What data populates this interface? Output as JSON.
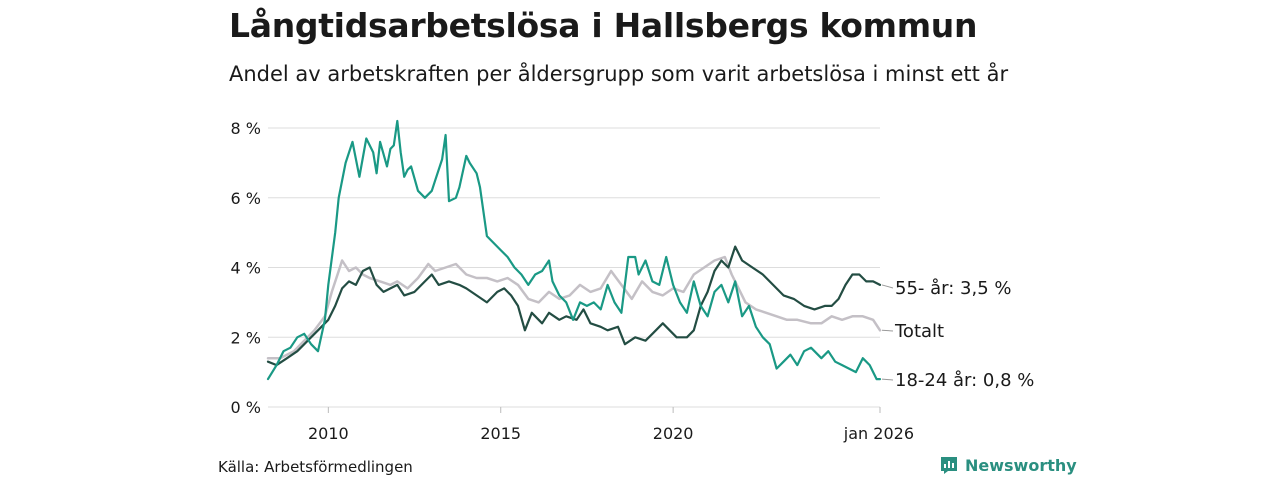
{
  "title": "Långtidsarbetslösa i Hallsbergs kommun",
  "subtitle": "Andel av arbetskraften per åldersgrupp som varit arbetslösa i minst ett år",
  "source": "Källa: Arbetsförmedlingen",
  "brand": {
    "name": "Newsworthy",
    "icon": "newsworthy-logo-icon"
  },
  "colors": {
    "young": "#1a9985",
    "old": "#234d43",
    "total": "#c4c0c6",
    "grid": "#dddddd",
    "text": "#1a1a1a",
    "brand": "#2a8f80"
  },
  "chart_data": {
    "type": "line",
    "title": "Långtidsarbetslösa i Hallsbergs kommun",
    "subtitle": "Andel av arbetskraften per åldersgrupp som varit arbetslösa i minst ett år",
    "xlabel": "",
    "ylabel": "",
    "xlim": [
      2008.25,
      2026.0
    ],
    "ylim": [
      0,
      8.2
    ],
    "grid": true,
    "yticks": [
      {
        "value": 0,
        "label": "0 %"
      },
      {
        "value": 2,
        "label": "2 %"
      },
      {
        "value": 4,
        "label": "4 %"
      },
      {
        "value": 6,
        "label": "6 %"
      },
      {
        "value": 8,
        "label": "8 %"
      }
    ],
    "xticks": [
      {
        "value": 2010,
        "label": "2010"
      },
      {
        "value": 2015,
        "label": "2015"
      },
      {
        "value": 2020,
        "label": "2020"
      },
      {
        "value": 2026,
        "label": "jan 2026"
      }
    ],
    "series": [
      {
        "name": "Totalt",
        "label": "Totalt",
        "color": "#c4c0c6",
        "points": [
          [
            2008.25,
            1.4
          ],
          [
            2008.6,
            1.4
          ],
          [
            2009.0,
            1.6
          ],
          [
            2009.3,
            1.9
          ],
          [
            2009.6,
            2.2
          ],
          [
            2009.9,
            2.6
          ],
          [
            2010.1,
            3.3
          ],
          [
            2010.3,
            3.9
          ],
          [
            2010.4,
            4.2
          ],
          [
            2010.6,
            3.9
          ],
          [
            2010.8,
            4.0
          ],
          [
            2011.0,
            3.8
          ],
          [
            2011.2,
            3.7
          ],
          [
            2011.5,
            3.6
          ],
          [
            2011.8,
            3.5
          ],
          [
            2012.0,
            3.6
          ],
          [
            2012.3,
            3.4
          ],
          [
            2012.6,
            3.7
          ],
          [
            2012.9,
            4.1
          ],
          [
            2013.1,
            3.9
          ],
          [
            2013.4,
            4.0
          ],
          [
            2013.7,
            4.1
          ],
          [
            2014.0,
            3.8
          ],
          [
            2014.3,
            3.7
          ],
          [
            2014.6,
            3.7
          ],
          [
            2014.9,
            3.6
          ],
          [
            2015.2,
            3.7
          ],
          [
            2015.5,
            3.5
          ],
          [
            2015.8,
            3.1
          ],
          [
            2016.1,
            3.0
          ],
          [
            2016.4,
            3.3
          ],
          [
            2016.7,
            3.1
          ],
          [
            2017.0,
            3.2
          ],
          [
            2017.3,
            3.5
          ],
          [
            2017.6,
            3.3
          ],
          [
            2017.9,
            3.4
          ],
          [
            2018.2,
            3.9
          ],
          [
            2018.5,
            3.5
          ],
          [
            2018.8,
            3.1
          ],
          [
            2019.1,
            3.6
          ],
          [
            2019.4,
            3.3
          ],
          [
            2019.7,
            3.2
          ],
          [
            2020.0,
            3.4
          ],
          [
            2020.3,
            3.3
          ],
          [
            2020.6,
            3.8
          ],
          [
            2020.9,
            4.0
          ],
          [
            2021.2,
            4.2
          ],
          [
            2021.5,
            4.3
          ],
          [
            2021.7,
            3.8
          ],
          [
            2021.9,
            3.4
          ],
          [
            2022.1,
            3.0
          ],
          [
            2022.4,
            2.8
          ],
          [
            2022.7,
            2.7
          ],
          [
            2023.0,
            2.6
          ],
          [
            2023.3,
            2.5
          ],
          [
            2023.6,
            2.5
          ],
          [
            2024.0,
            2.4
          ],
          [
            2024.3,
            2.4
          ],
          [
            2024.6,
            2.6
          ],
          [
            2024.9,
            2.5
          ],
          [
            2025.2,
            2.6
          ],
          [
            2025.5,
            2.6
          ],
          [
            2025.8,
            2.5
          ],
          [
            2026.0,
            2.2
          ]
        ]
      },
      {
        "name": "55- år",
        "label": "55- år: 3,5 %",
        "color": "#234d43",
        "points": [
          [
            2008.25,
            1.3
          ],
          [
            2008.5,
            1.2
          ],
          [
            2008.8,
            1.4
          ],
          [
            2009.1,
            1.6
          ],
          [
            2009.4,
            1.9
          ],
          [
            2009.7,
            2.2
          ],
          [
            2010.0,
            2.5
          ],
          [
            2010.2,
            2.9
          ],
          [
            2010.4,
            3.4
          ],
          [
            2010.6,
            3.6
          ],
          [
            2010.8,
            3.5
          ],
          [
            2011.0,
            3.9
          ],
          [
            2011.2,
            4.0
          ],
          [
            2011.4,
            3.5
          ],
          [
            2011.6,
            3.3
          ],
          [
            2011.8,
            3.4
          ],
          [
            2012.0,
            3.5
          ],
          [
            2012.2,
            3.2
          ],
          [
            2012.5,
            3.3
          ],
          [
            2012.8,
            3.6
          ],
          [
            2013.0,
            3.8
          ],
          [
            2013.2,
            3.5
          ],
          [
            2013.5,
            3.6
          ],
          [
            2013.8,
            3.5
          ],
          [
            2014.0,
            3.4
          ],
          [
            2014.3,
            3.2
          ],
          [
            2014.6,
            3.0
          ],
          [
            2014.9,
            3.3
          ],
          [
            2015.1,
            3.4
          ],
          [
            2015.3,
            3.2
          ],
          [
            2015.5,
            2.9
          ],
          [
            2015.7,
            2.2
          ],
          [
            2015.9,
            2.7
          ],
          [
            2016.2,
            2.4
          ],
          [
            2016.4,
            2.7
          ],
          [
            2016.7,
            2.5
          ],
          [
            2016.9,
            2.6
          ],
          [
            2017.2,
            2.5
          ],
          [
            2017.4,
            2.8
          ],
          [
            2017.6,
            2.4
          ],
          [
            2017.9,
            2.3
          ],
          [
            2018.1,
            2.2
          ],
          [
            2018.4,
            2.3
          ],
          [
            2018.6,
            1.8
          ],
          [
            2018.9,
            2.0
          ],
          [
            2019.2,
            1.9
          ],
          [
            2019.4,
            2.1
          ],
          [
            2019.7,
            2.4
          ],
          [
            2019.9,
            2.2
          ],
          [
            2020.1,
            2.0
          ],
          [
            2020.4,
            2.0
          ],
          [
            2020.6,
            2.2
          ],
          [
            2020.8,
            2.9
          ],
          [
            2021.0,
            3.3
          ],
          [
            2021.2,
            3.9
          ],
          [
            2021.4,
            4.2
          ],
          [
            2021.6,
            4.0
          ],
          [
            2021.8,
            4.6
          ],
          [
            2022.0,
            4.2
          ],
          [
            2022.3,
            4.0
          ],
          [
            2022.6,
            3.8
          ],
          [
            2022.9,
            3.5
          ],
          [
            2023.2,
            3.2
          ],
          [
            2023.5,
            3.1
          ],
          [
            2023.8,
            2.9
          ],
          [
            2024.1,
            2.8
          ],
          [
            2024.4,
            2.9
          ],
          [
            2024.6,
            2.9
          ],
          [
            2024.8,
            3.1
          ],
          [
            2025.0,
            3.5
          ],
          [
            2025.2,
            3.8
          ],
          [
            2025.4,
            3.8
          ],
          [
            2025.6,
            3.6
          ],
          [
            2025.8,
            3.6
          ],
          [
            2026.0,
            3.5
          ]
        ]
      },
      {
        "name": "18-24 år",
        "label": "18-24 år: 0,8 %",
        "color": "#1a9985",
        "points": [
          [
            2008.25,
            0.8
          ],
          [
            2008.5,
            1.2
          ],
          [
            2008.7,
            1.6
          ],
          [
            2008.9,
            1.7
          ],
          [
            2009.1,
            2.0
          ],
          [
            2009.3,
            2.1
          ],
          [
            2009.5,
            1.8
          ],
          [
            2009.7,
            1.6
          ],
          [
            2009.9,
            2.5
          ],
          [
            2010.0,
            3.5
          ],
          [
            2010.2,
            5.0
          ],
          [
            2010.3,
            6.0
          ],
          [
            2010.5,
            7.0
          ],
          [
            2010.7,
            7.6
          ],
          [
            2010.9,
            6.6
          ],
          [
            2011.1,
            7.7
          ],
          [
            2011.3,
            7.3
          ],
          [
            2011.4,
            6.7
          ],
          [
            2011.5,
            7.6
          ],
          [
            2011.7,
            6.9
          ],
          [
            2011.8,
            7.4
          ],
          [
            2011.9,
            7.5
          ],
          [
            2012.0,
            8.2
          ],
          [
            2012.1,
            7.3
          ],
          [
            2012.2,
            6.6
          ],
          [
            2012.3,
            6.8
          ],
          [
            2012.4,
            6.9
          ],
          [
            2012.6,
            6.2
          ],
          [
            2012.8,
            6.0
          ],
          [
            2013.0,
            6.2
          ],
          [
            2013.1,
            6.5
          ],
          [
            2013.3,
            7.1
          ],
          [
            2013.4,
            7.8
          ],
          [
            2013.5,
            5.9
          ],
          [
            2013.7,
            6.0
          ],
          [
            2013.8,
            6.3
          ],
          [
            2014.0,
            7.2
          ],
          [
            2014.1,
            7.0
          ],
          [
            2014.3,
            6.7
          ],
          [
            2014.4,
            6.3
          ],
          [
            2014.6,
            4.9
          ],
          [
            2014.8,
            4.7
          ],
          [
            2015.0,
            4.5
          ],
          [
            2015.2,
            4.3
          ],
          [
            2015.4,
            4.0
          ],
          [
            2015.6,
            3.8
          ],
          [
            2015.8,
            3.5
          ],
          [
            2016.0,
            3.8
          ],
          [
            2016.2,
            3.9
          ],
          [
            2016.4,
            4.2
          ],
          [
            2016.5,
            3.6
          ],
          [
            2016.7,
            3.2
          ],
          [
            2016.9,
            3.0
          ],
          [
            2017.1,
            2.5
          ],
          [
            2017.3,
            3.0
          ],
          [
            2017.5,
            2.9
          ],
          [
            2017.7,
            3.0
          ],
          [
            2017.9,
            2.8
          ],
          [
            2018.1,
            3.5
          ],
          [
            2018.3,
            3.0
          ],
          [
            2018.5,
            2.7
          ],
          [
            2018.7,
            4.3
          ],
          [
            2018.9,
            4.3
          ],
          [
            2019.0,
            3.8
          ],
          [
            2019.2,
            4.2
          ],
          [
            2019.4,
            3.6
          ],
          [
            2019.6,
            3.5
          ],
          [
            2019.8,
            4.3
          ],
          [
            2020.0,
            3.5
          ],
          [
            2020.2,
            3.0
          ],
          [
            2020.4,
            2.7
          ],
          [
            2020.6,
            3.6
          ],
          [
            2020.8,
            2.9
          ],
          [
            2021.0,
            2.6
          ],
          [
            2021.2,
            3.3
          ],
          [
            2021.4,
            3.5
          ],
          [
            2021.6,
            3.0
          ],
          [
            2021.8,
            3.6
          ],
          [
            2022.0,
            2.6
          ],
          [
            2022.2,
            2.9
          ],
          [
            2022.4,
            2.3
          ],
          [
            2022.6,
            2.0
          ],
          [
            2022.8,
            1.8
          ],
          [
            2023.0,
            1.1
          ],
          [
            2023.2,
            1.3
          ],
          [
            2023.4,
            1.5
          ],
          [
            2023.6,
            1.2
          ],
          [
            2023.8,
            1.6
          ],
          [
            2024.0,
            1.7
          ],
          [
            2024.3,
            1.4
          ],
          [
            2024.5,
            1.6
          ],
          [
            2024.7,
            1.3
          ],
          [
            2024.9,
            1.2
          ],
          [
            2025.1,
            1.1
          ],
          [
            2025.3,
            1.0
          ],
          [
            2025.5,
            1.4
          ],
          [
            2025.7,
            1.2
          ],
          [
            2025.9,
            0.8
          ],
          [
            2026.0,
            0.8
          ]
        ]
      }
    ]
  }
}
